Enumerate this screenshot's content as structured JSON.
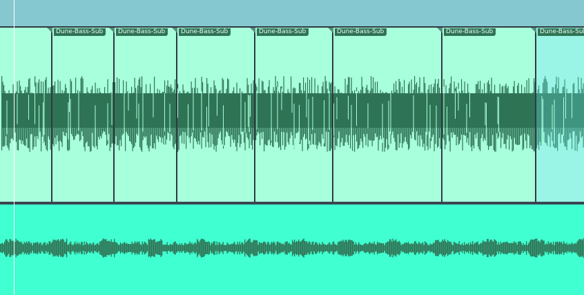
{
  "tracks": [
    {
      "regions": [
        {
          "name": "",
          "selected": false
        },
        {
          "name": "Dune-Bass-Sub",
          "selected": false
        },
        {
          "name": "Dune-Bass-Sub",
          "selected": false
        },
        {
          "name": "Dune-Bass-Sub",
          "selected": false
        },
        {
          "name": "Dune-Bass-Sub",
          "selected": false
        },
        {
          "name": "Dune-Bass-Sub",
          "selected": false
        },
        {
          "name": "Dune-Bass-Sub",
          "selected": false
        },
        {
          "name": "Dune-Bass-Sub",
          "selected": true
        }
      ]
    },
    {
      "regions": []
    }
  ],
  "colors": {
    "region": "#a8ffdc",
    "selected_region": "#9af5e6",
    "waveform": "#2f7355",
    "selected_waveform": "#3f9580",
    "track2": "#40ffd0",
    "ruler": "#86c8d0"
  }
}
